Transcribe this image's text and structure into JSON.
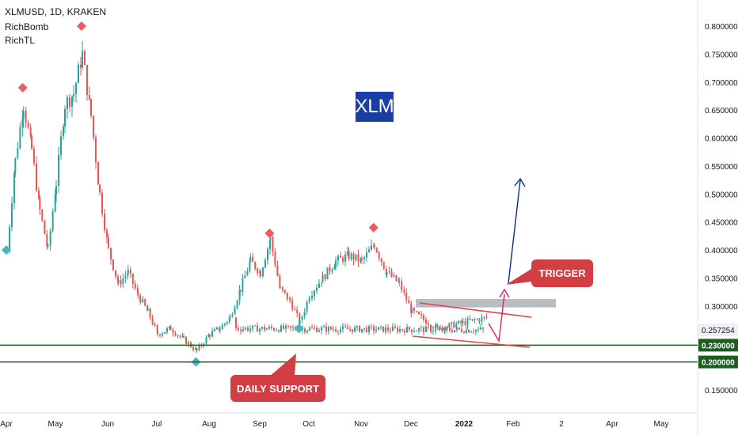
{
  "header": {
    "title": "XLMUSD, 1D, KRAKEN",
    "indicators": [
      "RichBomb",
      "RichTL"
    ]
  },
  "annotations": {
    "badge": "XLM",
    "trigger": "TRIGGER",
    "daily_support": "DAILY SUPPORT"
  },
  "chart_data": {
    "type": "candlestick",
    "symbol": "XLMUSD",
    "timeframe": "1D",
    "exchange": "KRAKEN",
    "x_ticks": [
      "Apr",
      "May",
      "Jun",
      "Jul",
      "Aug",
      "Sep",
      "Oct",
      "Nov",
      "Dec",
      "2022",
      "Feb",
      "2",
      "Apr",
      "May"
    ],
    "y_ticks": [
      "0.800000",
      "0.750000",
      "0.700000",
      "0.650000",
      "0.600000",
      "0.550000",
      "0.500000",
      "0.450000",
      "0.400000",
      "0.350000",
      "0.300000",
      "0.150000"
    ],
    "ylim": [
      0.125,
      0.82
    ],
    "last_price": "0.257254",
    "support_levels": [
      "0.230000",
      "0.200000"
    ],
    "resistance_zone": [
      0.2975,
      0.3125
    ],
    "series": [
      {
        "points": [
          [
            "Apr",
            0.4
          ],
          [
            "Apr",
            0.56
          ],
          [
            "Apr",
            0.66
          ],
          [
            "Apr",
            0.58
          ],
          [
            "Apr",
            0.47
          ],
          [
            "Apr",
            0.4
          ],
          [
            "May",
            0.52
          ],
          [
            "May",
            0.66
          ],
          [
            "May",
            0.68
          ],
          [
            "May",
            0.75
          ],
          [
            "May",
            0.64
          ],
          [
            "May",
            0.5
          ],
          [
            "Jun",
            0.4
          ],
          [
            "Jun",
            0.34
          ],
          [
            "Jun",
            0.36
          ],
          [
            "Jun",
            0.32
          ],
          [
            "Jun",
            0.29
          ],
          [
            "Jul",
            0.25
          ],
          [
            "Jul",
            0.26
          ],
          [
            "Jul",
            0.24
          ],
          [
            "Jul",
            0.22
          ],
          [
            "Aug",
            0.25
          ],
          [
            "Aug",
            0.26
          ],
          [
            "Aug",
            0.28
          ],
          [
            "Aug",
            0.33
          ],
          [
            "Aug",
            0.38
          ],
          [
            "Sep",
            0.36
          ],
          [
            "Sep",
            0.42
          ],
          [
            "Sep",
            0.33
          ],
          [
            "Sep",
            0.31
          ],
          [
            "Sep",
            0.27
          ],
          [
            "Oct",
            0.32
          ],
          [
            "Oct",
            0.35
          ],
          [
            "Oct",
            0.38
          ],
          [
            "Oct",
            0.39
          ],
          [
            "Nov",
            0.38
          ],
          [
            "Nov",
            0.41
          ],
          [
            "Nov",
            0.36
          ],
          [
            "Nov",
            0.34
          ],
          [
            "Dec",
            0.29
          ],
          [
            "Dec",
            0.26
          ],
          [
            "Dec",
            0.27
          ],
          [
            "Dec",
            0.28
          ],
          [
            "2022",
            0.27
          ],
          [
            "2022",
            0.26
          ]
        ]
      }
    ],
    "markers": [
      {
        "type": "top",
        "x": "Apr",
        "y": 0.69
      },
      {
        "type": "bottom",
        "x": "Apr",
        "y": 0.4
      },
      {
        "type": "top",
        "x": "May",
        "y": 0.8
      },
      {
        "type": "top",
        "x": "Sep",
        "y": 0.43
      },
      {
        "type": "top",
        "x": "Nov",
        "y": 0.44
      },
      {
        "type": "bottom",
        "x": "Jul",
        "y": 0.2
      },
      {
        "type": "bottom",
        "x": "Sep",
        "y": 0.26
      }
    ],
    "grid": false
  }
}
